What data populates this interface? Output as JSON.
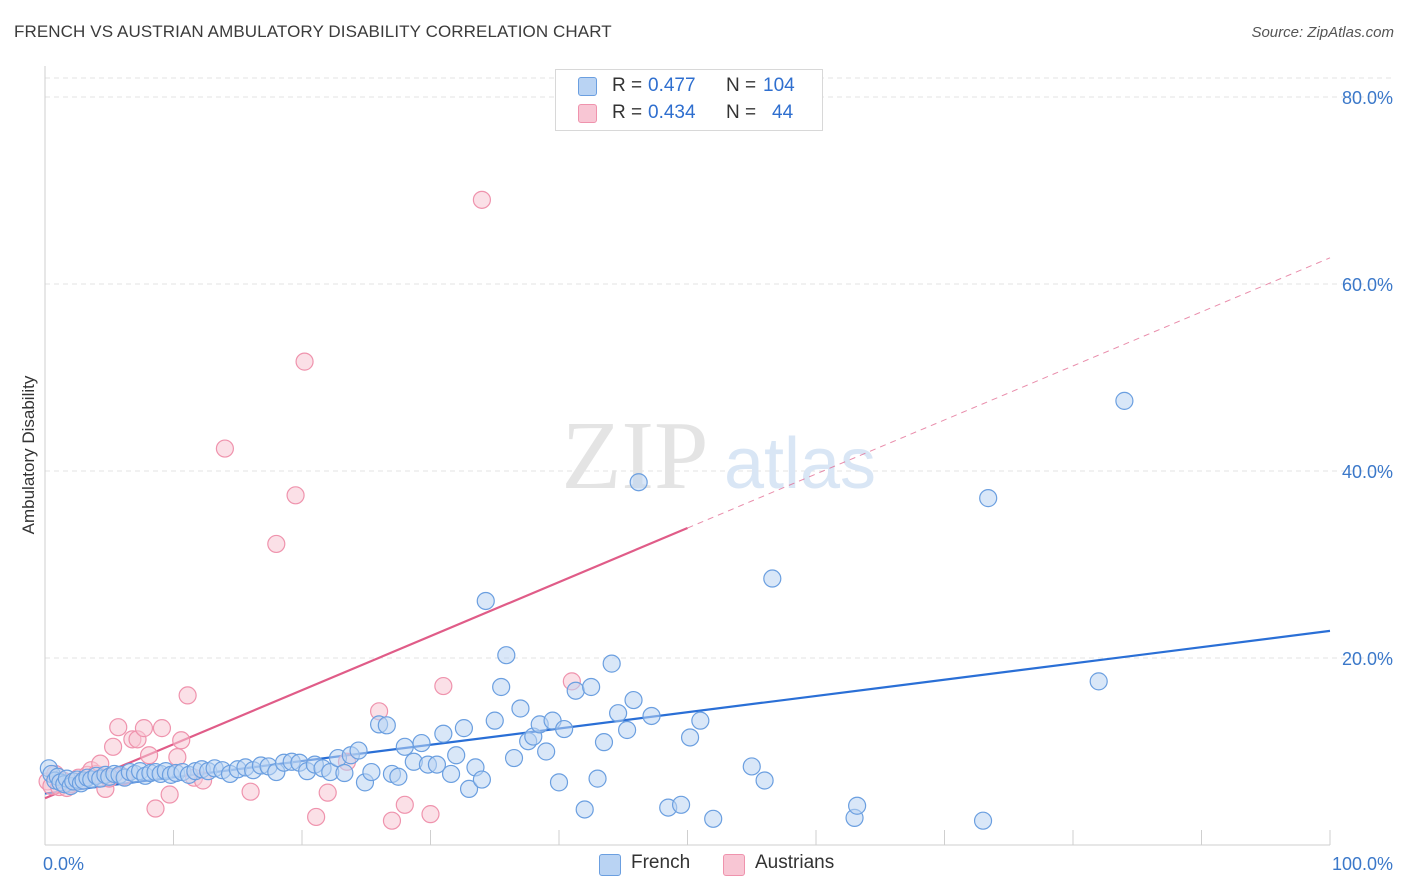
{
  "header": {
    "title": "FRENCH VS AUSTRIAN AMBULATORY DISABILITY CORRELATION CHART",
    "source": "Source: ZipAtlas.com"
  },
  "watermark": {
    "zip": "ZIP",
    "atlas": "atlas"
  },
  "stats": {
    "french": {
      "r_label": "R =",
      "r_value": "0.477",
      "n_label": "N =",
      "n_value": "104"
    },
    "austrians": {
      "r_label": "R =",
      "r_value": "0.434",
      "n_label": "N =",
      "n_value": "44"
    }
  },
  "legend": {
    "french": "French",
    "austrians": "Austrians"
  },
  "colors": {
    "french_fill": "#b9d3f3",
    "french_stroke": "#6b9fe0",
    "french_line": "#2a6fd6",
    "austrians_fill": "#f8c6d4",
    "austrians_stroke": "#ef93ad",
    "austrians_line": "#e05c88",
    "tick_label": "#3b78c9",
    "grid": "#e3e3e3"
  },
  "chart_data": {
    "type": "scatter",
    "title": "FRENCH VS AUSTRIAN AMBULATORY DISABILITY CORRELATION CHART",
    "xlabel": "",
    "ylabel": "Ambulatory Disability",
    "xlim": [
      0,
      100
    ],
    "ylim": [
      0,
      80
    ],
    "x_tick_labels": [
      "0.0%",
      "100.0%"
    ],
    "y_ticks": [
      20,
      40,
      60,
      80
    ],
    "y_tick_labels": [
      "20.0%",
      "40.0%",
      "60.0%",
      "80.0%"
    ],
    "grid": true,
    "legend_position": "bottom-center",
    "series": [
      {
        "name": "French",
        "trend": {
          "x": [
            0,
            100
          ],
          "y": [
            5.5,
            22.9
          ]
        },
        "points": [
          [
            0.3,
            8.2
          ],
          [
            0.5,
            7.6
          ],
          [
            0.8,
            6.9
          ],
          [
            1.0,
            7.3
          ],
          [
            1.2,
            6.7
          ],
          [
            1.5,
            6.5
          ],
          [
            1.7,
            7.1
          ],
          [
            2.0,
            6.3
          ],
          [
            2.2,
            6.8
          ],
          [
            2.5,
            7.0
          ],
          [
            2.8,
            6.6
          ],
          [
            3.0,
            6.9
          ],
          [
            3.3,
            7.2
          ],
          [
            3.6,
            7.0
          ],
          [
            4.0,
            7.4
          ],
          [
            4.3,
            7.1
          ],
          [
            4.7,
            7.5
          ],
          [
            5.0,
            7.3
          ],
          [
            5.4,
            7.6
          ],
          [
            5.8,
            7.5
          ],
          [
            6.2,
            7.2
          ],
          [
            6.6,
            7.8
          ],
          [
            7.0,
            7.6
          ],
          [
            7.4,
            7.9
          ],
          [
            7.8,
            7.4
          ],
          [
            8.2,
            7.7
          ],
          [
            8.6,
            7.8
          ],
          [
            9.0,
            7.6
          ],
          [
            9.4,
            7.9
          ],
          [
            9.8,
            7.5
          ],
          [
            10.2,
            7.7
          ],
          [
            10.7,
            7.8
          ],
          [
            11.2,
            7.5
          ],
          [
            11.7,
            7.9
          ],
          [
            12.2,
            8.1
          ],
          [
            12.7,
            7.9
          ],
          [
            13.2,
            8.2
          ],
          [
            13.8,
            8.0
          ],
          [
            14.4,
            7.6
          ],
          [
            15.0,
            8.1
          ],
          [
            15.6,
            8.3
          ],
          [
            16.2,
            8.0
          ],
          [
            16.8,
            8.5
          ],
          [
            17.4,
            8.4
          ],
          [
            18.0,
            7.8
          ],
          [
            18.6,
            8.8
          ],
          [
            19.2,
            8.9
          ],
          [
            19.8,
            8.8
          ],
          [
            20.4,
            7.9
          ],
          [
            21.0,
            8.6
          ],
          [
            21.6,
            8.2
          ],
          [
            22.2,
            7.8
          ],
          [
            22.8,
            9.3
          ],
          [
            23.3,
            7.7
          ],
          [
            23.8,
            9.6
          ],
          [
            24.4,
            10.1
          ],
          [
            24.9,
            6.7
          ],
          [
            25.4,
            7.8
          ],
          [
            26.0,
            12.9
          ],
          [
            26.6,
            12.8
          ],
          [
            27.0,
            7.6
          ],
          [
            27.5,
            7.3
          ],
          [
            28.0,
            10.5
          ],
          [
            28.7,
            8.9
          ],
          [
            29.3,
            10.9
          ],
          [
            29.8,
            8.6
          ],
          [
            30.5,
            8.6
          ],
          [
            31.0,
            11.9
          ],
          [
            31.6,
            7.6
          ],
          [
            32.0,
            9.6
          ],
          [
            32.6,
            12.5
          ],
          [
            33.0,
            6.0
          ],
          [
            33.5,
            8.3
          ],
          [
            34.0,
            7.0
          ],
          [
            34.3,
            26.1
          ],
          [
            35.0,
            13.3
          ],
          [
            35.5,
            16.9
          ],
          [
            35.9,
            20.3
          ],
          [
            36.5,
            9.3
          ],
          [
            37.0,
            14.6
          ],
          [
            37.6,
            11.1
          ],
          [
            38.0,
            11.6
          ],
          [
            38.5,
            12.9
          ],
          [
            39.0,
            10.0
          ],
          [
            39.5,
            13.3
          ],
          [
            40.0,
            6.7
          ],
          [
            40.4,
            12.4
          ],
          [
            41.3,
            16.5
          ],
          [
            42.0,
            3.8
          ],
          [
            42.5,
            16.9
          ],
          [
            43.0,
            7.1
          ],
          [
            43.5,
            11.0
          ],
          [
            44.1,
            19.4
          ],
          [
            44.6,
            14.1
          ],
          [
            45.3,
            12.3
          ],
          [
            45.8,
            15.5
          ],
          [
            46.2,
            38.8
          ],
          [
            47.2,
            13.8
          ],
          [
            48.5,
            4.0
          ],
          [
            49.5,
            4.3
          ],
          [
            50.2,
            11.5
          ],
          [
            51.0,
            13.3
          ],
          [
            52.0,
            2.8
          ],
          [
            55.0,
            8.4
          ],
          [
            56.0,
            6.9
          ],
          [
            56.6,
            28.5
          ],
          [
            63.0,
            2.9
          ],
          [
            63.2,
            4.2
          ],
          [
            73.0,
            2.6
          ],
          [
            73.4,
            37.1
          ],
          [
            82.0,
            17.5
          ],
          [
            84.0,
            47.5
          ]
        ]
      },
      {
        "name": "Austrians",
        "trend": {
          "x": [
            0,
            100
          ],
          "y": [
            5.0,
            62.8
          ]
        },
        "points": [
          [
            0.2,
            6.8
          ],
          [
            0.5,
            6.3
          ],
          [
            0.8,
            7.6
          ],
          [
            1.1,
            6.2
          ],
          [
            1.4,
            6.9
          ],
          [
            1.7,
            6.1
          ],
          [
            2.0,
            6.5
          ],
          [
            2.3,
            6.8
          ],
          [
            2.6,
            7.2
          ],
          [
            3.0,
            6.9
          ],
          [
            3.3,
            7.5
          ],
          [
            3.6,
            8.0
          ],
          [
            4.0,
            7.6
          ],
          [
            4.3,
            8.7
          ],
          [
            4.7,
            6.0
          ],
          [
            5.0,
            7.1
          ],
          [
            5.3,
            10.5
          ],
          [
            5.7,
            12.6
          ],
          [
            6.1,
            7.3
          ],
          [
            6.8,
            11.3
          ],
          [
            7.2,
            11.3
          ],
          [
            7.7,
            12.5
          ],
          [
            8.1,
            9.6
          ],
          [
            8.6,
            3.9
          ],
          [
            9.1,
            12.5
          ],
          [
            9.7,
            5.4
          ],
          [
            10.3,
            9.4
          ],
          [
            10.6,
            11.2
          ],
          [
            11.1,
            16.0
          ],
          [
            11.6,
            7.2
          ],
          [
            12.3,
            6.9
          ],
          [
            14.0,
            42.4
          ],
          [
            16.0,
            5.7
          ],
          [
            18.0,
            32.2
          ],
          [
            19.5,
            37.4
          ],
          [
            20.2,
            51.7
          ],
          [
            21.1,
            3.0
          ],
          [
            22.0,
            5.6
          ],
          [
            23.5,
            8.9
          ],
          [
            26.0,
            14.3
          ],
          [
            27.0,
            2.6
          ],
          [
            28.0,
            4.3
          ],
          [
            30.0,
            3.3
          ],
          [
            31.0,
            17.0
          ],
          [
            34.0,
            69.0
          ],
          [
            41.0,
            17.5
          ]
        ]
      }
    ]
  }
}
